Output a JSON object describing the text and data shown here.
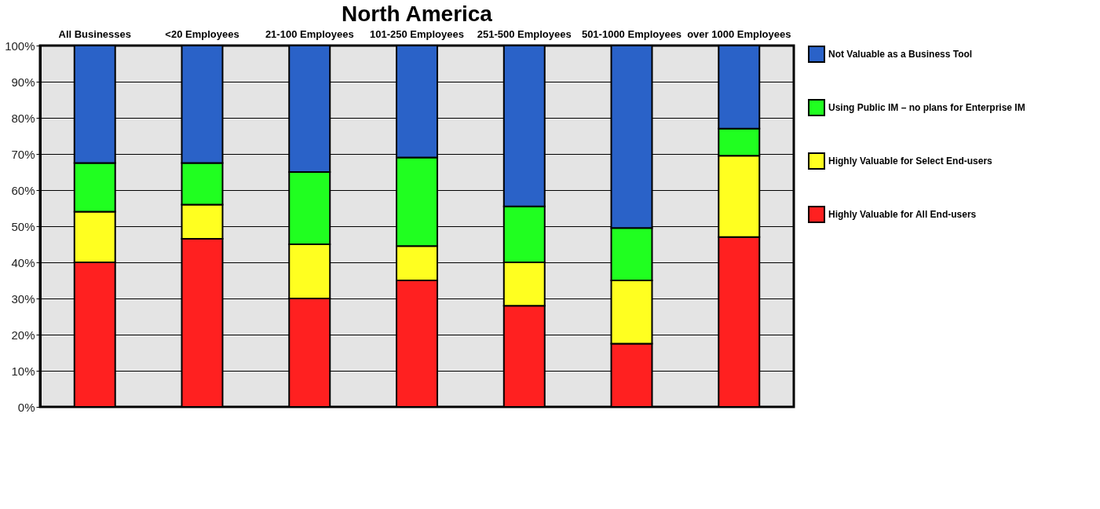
{
  "chart_data": {
    "type": "bar",
    "stacked": true,
    "title": "North America",
    "categories": [
      "All Businesses",
      "<20 Employees",
      "21-100 Employees",
      "101-250 Employees",
      "251-500 Employees",
      "501-1000 Employees",
      "over 1000 Employees"
    ],
    "series": [
      {
        "name": "Highly Valuable for All End-users",
        "color": "#ff2020",
        "values": [
          40,
          46.5,
          30,
          35,
          28,
          17.5,
          47
        ]
      },
      {
        "name": "Highly Valuable for Select End-users",
        "color": "#ffff20",
        "values": [
          14,
          9.5,
          15,
          9.5,
          12,
          17.5,
          22.5
        ]
      },
      {
        "name": "Using Public IM – no plans for Enterprise IM",
        "color": "#20ff20",
        "values": [
          13.5,
          11.5,
          20,
          24.5,
          15.5,
          14.5,
          7.5
        ]
      },
      {
        "name": "Not Valuable as a Business Tool",
        "color": "#2a62c8",
        "values": [
          32.5,
          32.5,
          35,
          31,
          44.5,
          50.5,
          23
        ]
      }
    ],
    "ylim": [
      0,
      100
    ],
    "yticks": [
      {
        "value": 0,
        "label": "0%"
      },
      {
        "value": 10,
        "label": "10%"
      },
      {
        "value": 20,
        "label": "20%"
      },
      {
        "value": 30,
        "label": "30%"
      },
      {
        "value": 40,
        "label": "40%"
      },
      {
        "value": 50,
        "label": "50%"
      },
      {
        "value": 60,
        "label": "60%"
      },
      {
        "value": 70,
        "label": "70%"
      },
      {
        "value": 80,
        "label": "80%"
      },
      {
        "value": 90,
        "label": "90%"
      },
      {
        "value": 100,
        "label": "100%"
      }
    ],
    "grid": "y",
    "legend": "right"
  }
}
